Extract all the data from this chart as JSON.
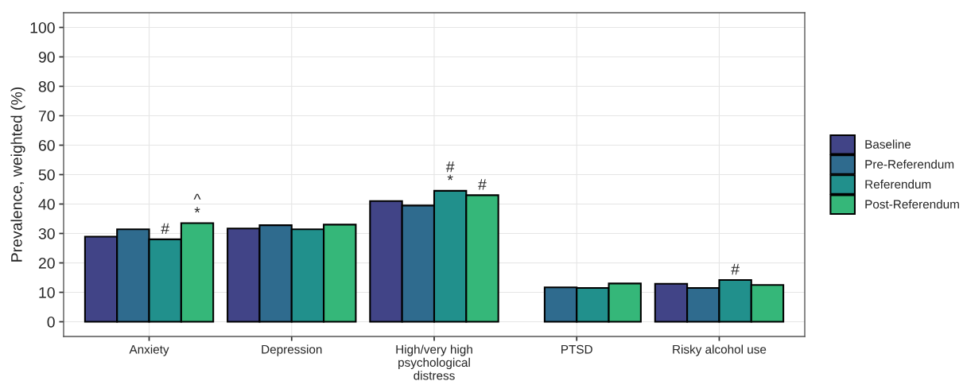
{
  "chart_data": {
    "type": "bar",
    "ylabel": "Prevalence, weighted (%)",
    "categories": [
      "Anxiety",
      "Depression",
      "High/very high\npsychological\ndistress",
      "PTSD",
      "Risky alcohol use"
    ],
    "series": [
      {
        "name": "Baseline",
        "color": "#414487",
        "values": [
          28.9,
          31.7,
          41.0,
          null,
          12.9
        ]
      },
      {
        "name": "Pre-Referendum",
        "color": "#2f6b8e",
        "values": [
          31.4,
          32.8,
          39.5,
          11.7,
          11.5
        ]
      },
      {
        "name": "Referendum",
        "color": "#21908c",
        "values": [
          28.0,
          31.4,
          44.5,
          11.5,
          14.2
        ],
        "value_labels": [
          "#",
          null,
          "#\n*",
          null,
          "#"
        ]
      },
      {
        "name": "Post-Referendum",
        "color": "#35b779",
        "values": [
          33.5,
          33.0,
          43.0,
          13.0,
          12.5
        ],
        "value_labels": [
          "^\n*",
          null,
          "#",
          null,
          null
        ]
      }
    ],
    "ylim": [
      -5,
      105
    ],
    "yticks": [
      0,
      10,
      20,
      30,
      40,
      50,
      60,
      70,
      80,
      90,
      100
    ],
    "grid": true,
    "legend": "right"
  }
}
